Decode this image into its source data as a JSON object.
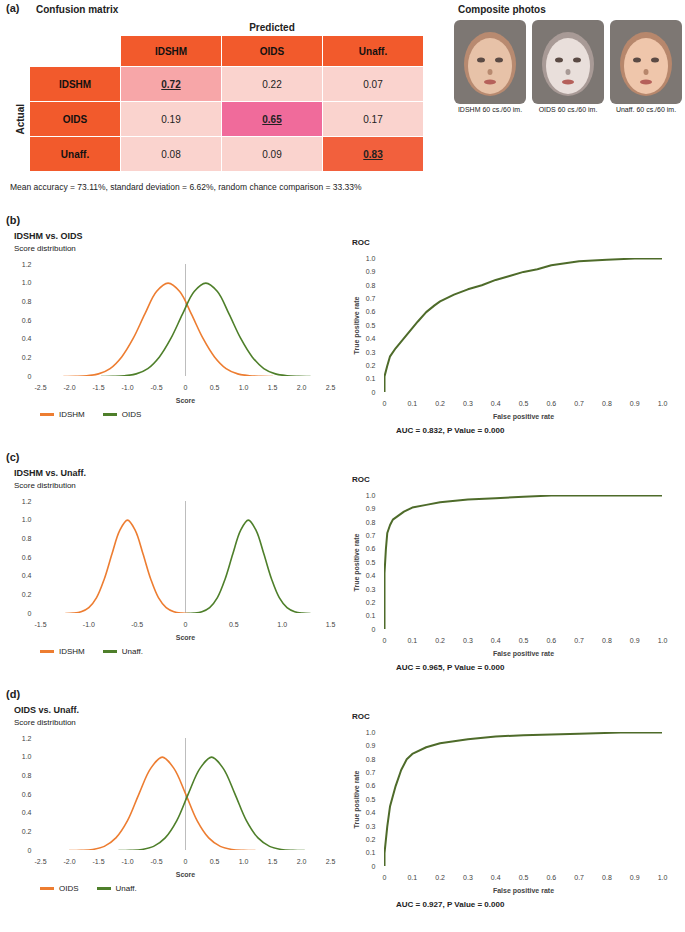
{
  "chart_data": [
    {
      "type": "confusion_matrix",
      "panel": "(a)",
      "title": "Confusion matrix",
      "x_label": "Predicted",
      "y_label": "Actual",
      "categories": [
        "IDSHM",
        "OIDS",
        "Unaff."
      ],
      "cells": [
        [
          0.72,
          0.22,
          0.07
        ],
        [
          0.19,
          0.65,
          0.17
        ],
        [
          0.08,
          0.09,
          0.83
        ]
      ],
      "color": "#F25A2C",
      "colors": [
        [
          "#F7A6A8",
          "#FAD3CE",
          "#FAD3CE"
        ],
        [
          "#FAD3CE",
          "#F06B9B",
          "#FAD3CE"
        ],
        [
          "#FAD3CE",
          "#FAD3CE",
          "#F2603D"
        ]
      ],
      "caption": "Mean accuracy = 73.11%, standard deviation = 6.62%, random chance comparison = 33.33%"
    },
    {
      "type": "images",
      "title": "Composite photos",
      "captions": [
        "IDSHM 60 cs./60 im.",
        "OIDS 60 cs./60 im.",
        "Unaff. 60 cs./60 im."
      ]
    },
    {
      "type": "line",
      "panel": "(b)",
      "heading": "IDSHM vs. OIDS",
      "title": "Score distribution",
      "x_label": "Score",
      "xlim": [
        -2.5,
        2.5
      ],
      "xticks": [
        -2.5,
        {
          "value": -2,
          "label": "-2.0"
        },
        -1.5,
        {
          "value": -1,
          "label": "-1.0"
        },
        -0.5,
        0,
        0.5,
        {
          "value": 1,
          "label": "1.0"
        },
        1.5,
        {
          "value": 2,
          "label": "2.0"
        },
        2.5
      ],
      "ylim": [
        0,
        1.2
      ],
      "yticks": [
        0,
        0.2,
        0.4,
        0.6,
        0.8,
        {
          "value": 1,
          "label": "1.0"
        },
        1.2
      ],
      "vline": 0,
      "legend": "bottom",
      "series": [
        {
          "name": "IDSHM",
          "color": "#ED7D31",
          "x": [
            -2.1,
            -1.9,
            -1.7,
            -1.5,
            -1.3,
            -1.1,
            -0.9,
            -0.7,
            -0.5,
            -0.3,
            -0.1,
            0.1,
            0.3,
            0.5,
            0.7,
            0.9,
            1.1,
            1.3,
            1.5
          ],
          "values": [
            0,
            0.002,
            0.008,
            0.028,
            0.085,
            0.21,
            0.41,
            0.67,
            0.91,
            1.0,
            0.91,
            0.67,
            0.41,
            0.21,
            0.085,
            0.028,
            0.008,
            0.002,
            0
          ]
        },
        {
          "name": "OIDS",
          "color": "#4E7F2A",
          "x": [
            -1.45,
            -1.25,
            -1.05,
            -0.85,
            -0.65,
            -0.45,
            -0.25,
            -0.05,
            0.15,
            0.35,
            0.55,
            0.75,
            0.95,
            1.15,
            1.35,
            1.55,
            1.75,
            1.95,
            2.15
          ],
          "values": [
            0,
            0.002,
            0.008,
            0.028,
            0.085,
            0.21,
            0.41,
            0.67,
            0.91,
            1.0,
            0.91,
            0.67,
            0.41,
            0.21,
            0.085,
            0.028,
            0.008,
            0.002,
            0
          ]
        }
      ]
    },
    {
      "type": "line",
      "title": "ROC",
      "x_label": "False positive rate",
      "y_label": "True positive rate",
      "xlim": [
        0,
        1
      ],
      "xticks": [
        0,
        0.1,
        0.2,
        0.3,
        0.4,
        0.5,
        0.6,
        0.7,
        0.8,
        0.9,
        {
          "value": 1,
          "label": "1.0"
        }
      ],
      "ylim": [
        0,
        1
      ],
      "yticks": [
        0,
        0.1,
        0.2,
        0.3,
        0.4,
        0.5,
        0.6,
        0.7,
        0.8,
        0.9,
        {
          "value": 1,
          "label": "1.0"
        }
      ],
      "annotation": "AUC = 0.832, P Value = 0.000",
      "series": [
        {
          "color": "#4E6B2A",
          "x": [
            0,
            0,
            0.01,
            0.02,
            0.04,
            0.06,
            0.08,
            0.1,
            0.12,
            0.15,
            0.18,
            0.2,
            0.25,
            0.3,
            0.35,
            0.4,
            0.45,
            0.5,
            0.55,
            0.6,
            0.7,
            0.8,
            0.9,
            1.0
          ],
          "values": [
            0,
            0.12,
            0.2,
            0.27,
            0.33,
            0.38,
            0.43,
            0.48,
            0.53,
            0.6,
            0.65,
            0.68,
            0.73,
            0.77,
            0.8,
            0.84,
            0.87,
            0.9,
            0.92,
            0.95,
            0.98,
            0.99,
            1.0,
            1.0
          ]
        }
      ]
    },
    {
      "type": "line",
      "panel": "(c)",
      "heading": "IDSHM vs. Unaff.",
      "title": "Score distribution",
      "x_label": "Score",
      "xlim": [
        -1.5,
        1.5
      ],
      "xticks": [
        -1.5,
        {
          "value": -1,
          "label": "-1.0"
        },
        -0.5,
        0,
        0.5,
        {
          "value": 1,
          "label": "1.0"
        },
        1.5
      ],
      "ylim": [
        0,
        1.2
      ],
      "yticks": [
        0,
        0.2,
        0.4,
        0.6,
        0.8,
        {
          "value": 1,
          "label": "1.0"
        },
        1.2
      ],
      "vline": 0,
      "legend": "bottom",
      "series": [
        {
          "name": "IDSHM",
          "color": "#ED7D31",
          "x": [
            -1.24,
            -1.16,
            -1.08,
            -1.0,
            -0.92,
            -0.84,
            -0.76,
            -0.68,
            -0.6,
            -0.52,
            -0.44,
            -0.36,
            -0.28,
            -0.2,
            -0.12,
            -0.04,
            0.04
          ],
          "values": [
            0,
            0.004,
            0.019,
            0.063,
            0.17,
            0.37,
            0.64,
            0.89,
            1.0,
            0.89,
            0.64,
            0.37,
            0.17,
            0.063,
            0.019,
            0.004,
            0
          ]
        },
        {
          "name": "Unaff.",
          "color": "#4E7F2A",
          "x": [
            0.01,
            0.09,
            0.17,
            0.25,
            0.33,
            0.41,
            0.49,
            0.57,
            0.65,
            0.73,
            0.81,
            0.89,
            0.97,
            1.05,
            1.13,
            1.21,
            1.29
          ],
          "values": [
            0,
            0.004,
            0.019,
            0.063,
            0.17,
            0.37,
            0.64,
            0.89,
            1.0,
            0.89,
            0.64,
            0.37,
            0.17,
            0.063,
            0.019,
            0.004,
            0
          ]
        }
      ]
    },
    {
      "type": "line",
      "title": "ROC",
      "x_label": "False positive rate",
      "y_label": "True positive rate",
      "xlim": [
        0,
        1
      ],
      "xticks": [
        0,
        0.1,
        0.2,
        0.3,
        0.4,
        0.5,
        0.6,
        0.7,
        0.8,
        0.9,
        {
          "value": 1,
          "label": "1.0"
        }
      ],
      "ylim": [
        0,
        1
      ],
      "yticks": [
        0,
        0.1,
        0.2,
        0.3,
        0.4,
        0.5,
        0.6,
        0.7,
        0.8,
        0.9,
        {
          "value": 1,
          "label": "1.0"
        }
      ],
      "annotation": "AUC = 0.965, P Value = 0.000",
      "series": [
        {
          "color": "#4E6B2A",
          "x": [
            0,
            0,
            0.005,
            0.01,
            0.02,
            0.03,
            0.05,
            0.07,
            0.1,
            0.15,
            0.2,
            0.3,
            0.4,
            0.5,
            0.6,
            1.0
          ],
          "values": [
            0,
            0.42,
            0.6,
            0.72,
            0.78,
            0.82,
            0.85,
            0.88,
            0.91,
            0.93,
            0.95,
            0.97,
            0.98,
            0.99,
            1.0,
            1.0
          ]
        }
      ]
    },
    {
      "type": "line",
      "panel": "(d)",
      "heading": "OIDS vs. Unaff.",
      "title": "Score distribution",
      "x_label": "Score",
      "xlim": [
        -2.5,
        2.5
      ],
      "xticks": [
        -2.5,
        {
          "value": -2,
          "label": "-2.0"
        },
        -1.5,
        {
          "value": -1,
          "label": "-1.0"
        },
        -0.5,
        0,
        0.5,
        {
          "value": 1,
          "label": "1.0"
        },
        1.5,
        {
          "value": 2,
          "label": "2.0"
        },
        2.5
      ],
      "ylim": [
        0,
        1.2
      ],
      "yticks": [
        0,
        0.2,
        0.4,
        0.6,
        0.8,
        {
          "value": 1,
          "label": "1.0"
        },
        1.2
      ],
      "vline": 0,
      "legend": "bottom",
      "series": [
        {
          "name": "OIDS",
          "color": "#ED7D31",
          "x": [
            -2.0,
            -1.8,
            -1.6,
            -1.4,
            -1.2,
            -1.0,
            -0.8,
            -0.6,
            -0.4,
            -0.2,
            0,
            0.2,
            0.4,
            0.6,
            0.8,
            1.0,
            1.2
          ],
          "values": [
            0,
            0.002,
            0.011,
            0.044,
            0.135,
            0.32,
            0.61,
            0.88,
            1.0,
            0.88,
            0.61,
            0.32,
            0.135,
            0.044,
            0.011,
            0.002,
            0
          ]
        },
        {
          "name": "Unaff.",
          "color": "#4E7F2A",
          "x": [
            -1.15,
            -0.95,
            -0.75,
            -0.55,
            -0.35,
            -0.15,
            0.05,
            0.25,
            0.45,
            0.65,
            0.85,
            1.05,
            1.25,
            1.45,
            1.65,
            1.85,
            2.05
          ],
          "values": [
            0,
            0.002,
            0.011,
            0.044,
            0.135,
            0.32,
            0.61,
            0.88,
            1.0,
            0.88,
            0.61,
            0.32,
            0.135,
            0.044,
            0.011,
            0.002,
            0
          ]
        }
      ]
    },
    {
      "type": "line",
      "title": "ROC",
      "x_label": "False positive rate",
      "y_label": "True positive rate",
      "xlim": [
        0,
        1
      ],
      "xticks": [
        0,
        0.1,
        0.2,
        0.3,
        0.4,
        0.5,
        0.6,
        0.7,
        0.8,
        0.9,
        {
          "value": 1,
          "label": "1.0"
        }
      ],
      "ylim": [
        0,
        1
      ],
      "yticks": [
        0,
        0.1,
        0.2,
        0.3,
        0.4,
        0.5,
        0.6,
        0.7,
        0.8,
        0.9,
        {
          "value": 1,
          "label": "1.0"
        }
      ],
      "annotation": "AUC = 0.927, P Value = 0.000",
      "series": [
        {
          "color": "#4E6B2A",
          "x": [
            0,
            0,
            0.01,
            0.02,
            0.04,
            0.06,
            0.08,
            0.1,
            0.15,
            0.2,
            0.3,
            0.4,
            0.5,
            0.7,
            0.85,
            1.0
          ],
          "values": [
            0,
            0.1,
            0.3,
            0.45,
            0.6,
            0.72,
            0.8,
            0.84,
            0.89,
            0.92,
            0.95,
            0.97,
            0.98,
            0.99,
            1.0,
            1.0
          ]
        }
      ]
    }
  ]
}
